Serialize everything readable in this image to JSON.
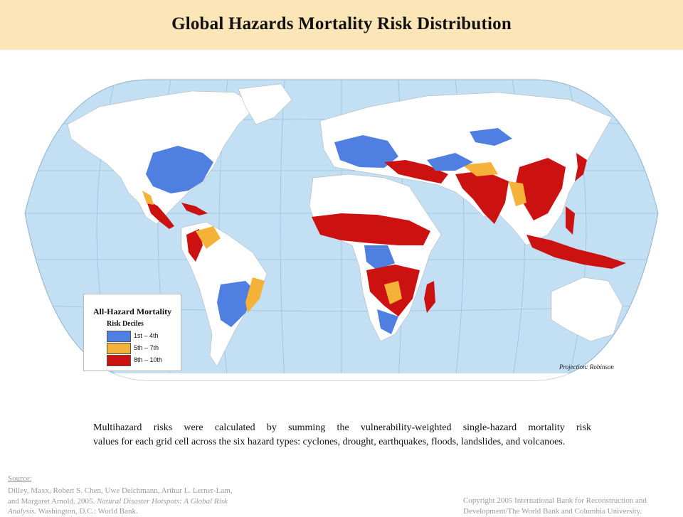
{
  "title": "Global Hazards Mortality Risk Distribution",
  "colors": {
    "ocean": "#c3dff3",
    "land_no_data": "#ffffff",
    "low": "#4f7fe0",
    "medium": "#f4b338",
    "high": "#cc1111",
    "title_band": "#fce6b8"
  },
  "legend": {
    "title": "All-Hazard Mortality",
    "subtitle": "Risk Deciles",
    "items": [
      {
        "label": "1st – 4th",
        "color_key": "low"
      },
      {
        "label": "5th – 7th",
        "color_key": "medium"
      },
      {
        "label": "8th – 10th",
        "color_key": "high"
      }
    ]
  },
  "projection": "Projection: Robinson",
  "caption": {
    "line1": "Multihazard risks were calculated by summing the vulnerability-weighted single-hazard mortality risk",
    "line2": "values for each grid cell across the six hazard types: cyclones, drought, earthquakes, floods, landslides, and volcanoes."
  },
  "source": {
    "heading": "Source:",
    "text_plain": "Dilley, Maxx, Robert S. Chen, Uwe Deichmann, Arthur L. Lerner-Lam, and Margaret Arnold. 2005. ",
    "text_italic": "Natural Disaster Hotspots: A Global Risk Analysis.",
    "text_end": " Washington, D.C.: World Bank."
  },
  "copyright": "Copyright 2005 International Bank for Reconstruction and Development/The World Bank and Columbia University."
}
